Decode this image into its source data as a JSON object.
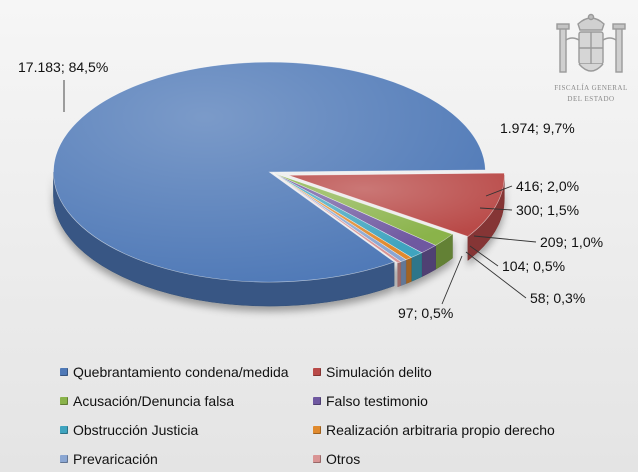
{
  "chart_data": {
    "type": "pie",
    "title": "",
    "style": "3d-exploded",
    "legend_position": "bottom",
    "slices": [
      {
        "name": "Quebrantamiento condena/medida",
        "value": 17183,
        "label": "17.183; 84,5%",
        "color": "#4f79b7"
      },
      {
        "name": "Simulación delito",
        "value": 1974,
        "label": "1.974; 9,7%",
        "color": "#b94a48"
      },
      {
        "name": "Acusación/Denuncia falsa",
        "value": 416,
        "label": "416; 2,0%",
        "color": "#8ab34a"
      },
      {
        "name": "Falso testimonio",
        "value": 300,
        "label": "300; 1,5%",
        "color": "#6f58a0"
      },
      {
        "name": "Obstrucción Justicia",
        "value": 209,
        "label": "209; 1,0%",
        "color": "#3fa4bf"
      },
      {
        "name": "Realización arbitraria propio derecho",
        "value": 104,
        "label": "104; 0,5%",
        "color": "#e08a2e"
      },
      {
        "name": "Prevaricación",
        "value": 97,
        "label": "97; 0,5%",
        "color": "#8aa6d2"
      },
      {
        "name": "Otros",
        "value": 58,
        "label": "58; 0,3%",
        "color": "#d99494"
      }
    ]
  },
  "seal": {
    "line1": "FISCALÍA GENERAL",
    "line2": "DEL ESTADO"
  }
}
